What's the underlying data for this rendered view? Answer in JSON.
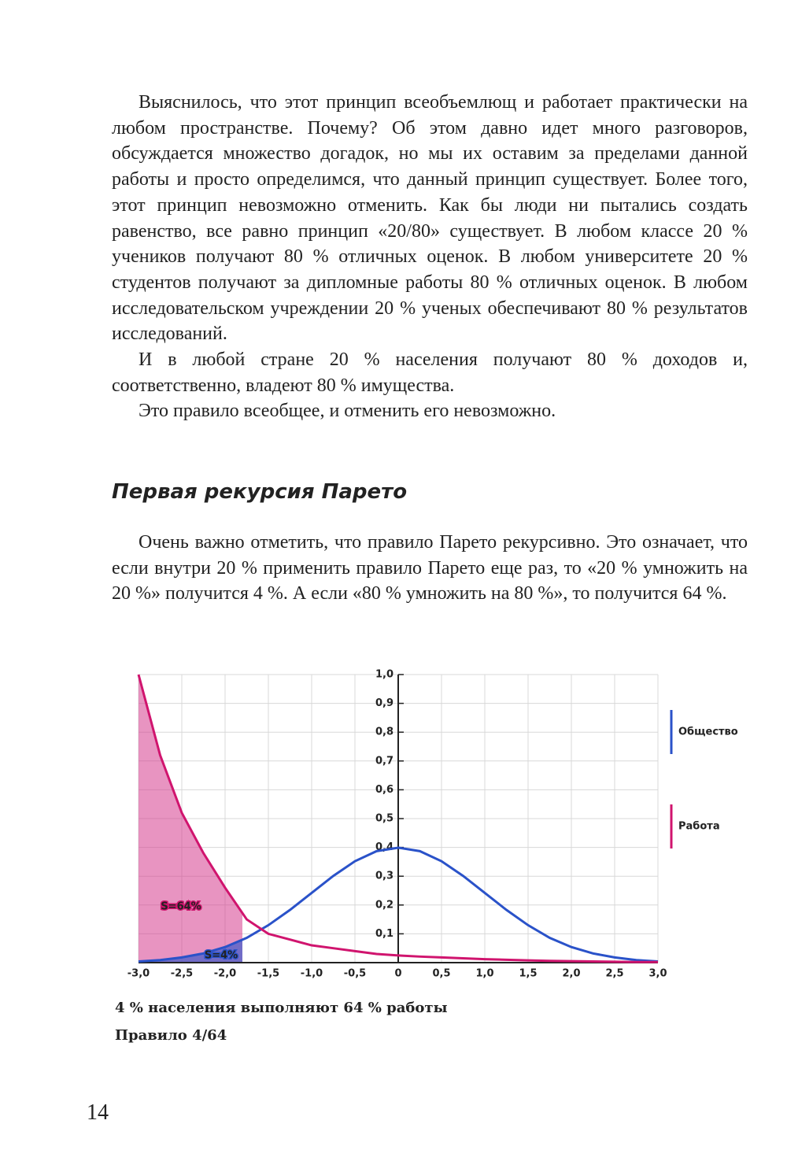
{
  "paragraphs": [
    "Выяснилось, что этот принцип всеобъемлющ и работает практически на любом пространстве. Почему? Об этом давно идет много разговоров, обсуждается множество догадок, но мы их оставим за пределами данной работы и просто определимся, что данный принцип существует. Более того, этот принцип невозможно отменить. Как бы люди ни пытались создать равенство, все равно принцип «20/80» существует. В любом классе 20 % учеников получают 80 % отличных оценок. В любом университете 20 % студентов получают за дипломные работы 80 % отличных оценок. В любом исследовательском учреждении 20 % ученых обеспечивают 80 % результатов исследований.",
    "И в любой стране 20 % населения получают 80 % доходов и, соответственно, владеют 80 % имущества.",
    "Это правило всеобщее, и отменить его невозможно."
  ],
  "section_title": "Первая рекурсия Парето",
  "section_paragraphs": [
    "Очень важно отметить, что правило Парето рекурсивно. Это означает, что если внутри 20 % применить правило Парето еще раз, то «20 % умножить на 20 %» получится 4 %. А если «80 % умножить на 80 %», то получится 64 %."
  ],
  "chart_data": {
    "type": "line",
    "x": [
      -3,
      -2.75,
      -2.5,
      -2.25,
      -2,
      -1.75,
      -1.5,
      -1.25,
      -1,
      -0.75,
      -0.5,
      -0.25,
      0,
      0.25,
      0.5,
      0.75,
      1,
      1.25,
      1.5,
      1.75,
      2,
      2.25,
      2.5,
      2.75,
      3
    ],
    "series": [
      {
        "name": "Общество",
        "color": "#2a52c9",
        "values": [
          0.004,
          0.009,
          0.018,
          0.032,
          0.054,
          0.086,
          0.13,
          0.183,
          0.242,
          0.301,
          0.352,
          0.387,
          0.399,
          0.387,
          0.352,
          0.301,
          0.242,
          0.183,
          0.13,
          0.086,
          0.054,
          0.032,
          0.018,
          0.009,
          0.004
        ]
      },
      {
        "name": "Работа",
        "color": "#d0146e",
        "values": [
          1.0,
          0.72,
          0.52,
          0.38,
          0.26,
          0.15,
          0.1,
          0.08,
          0.06,
          0.05,
          0.04,
          0.03,
          0.025,
          0.021,
          0.018,
          0.015,
          0.012,
          0.01,
          0.008,
          0.006,
          0.005,
          0.004,
          0.003,
          0.002,
          0.002
        ]
      }
    ],
    "xlim": [
      -3,
      3
    ],
    "xticks": [
      {
        "value": -3,
        "label": "-3,0"
      },
      {
        "value": -2.5,
        "label": "-2,5"
      },
      {
        "value": -2,
        "label": "-2,0"
      },
      {
        "value": -1.5,
        "label": "-1,5"
      },
      {
        "value": -1,
        "label": "-1,0"
      },
      {
        "value": -0.5,
        "label": "-0,5"
      },
      0,
      {
        "value": 0.5,
        "label": "0,5"
      },
      {
        "value": 1,
        "label": "1,0"
      },
      {
        "value": 1.5,
        "label": "1,5"
      },
      {
        "value": 2,
        "label": "2,0"
      },
      {
        "value": 2.5,
        "label": "2,5"
      },
      {
        "value": 3,
        "label": "3,0"
      }
    ],
    "ylim": [
      0,
      1
    ],
    "yticks": [
      {
        "value": 0.1,
        "label": "0,1"
      },
      {
        "value": 0.2,
        "label": "0,2"
      },
      {
        "value": 0.3,
        "label": "0,3"
      },
      {
        "value": 0.4,
        "label": "0,4"
      },
      {
        "value": 0.5,
        "label": "0,5"
      },
      {
        "value": 0.6,
        "label": "0,6"
      },
      {
        "value": 0.7,
        "label": "0,7"
      },
      {
        "value": 0.8,
        "label": "0,8"
      },
      {
        "value": 0.9,
        "label": "0,9"
      },
      {
        "value": 1,
        "label": "1,0"
      }
    ],
    "grid": true,
    "legend": "right",
    "shade_range": [
      -3,
      -1.8
    ],
    "annotations": [
      "S=64%",
      "S=4%"
    ]
  },
  "caption": [
    "4 % населения выполняют 64 % работы",
    "Правило 4/64"
  ],
  "page_number": "14"
}
